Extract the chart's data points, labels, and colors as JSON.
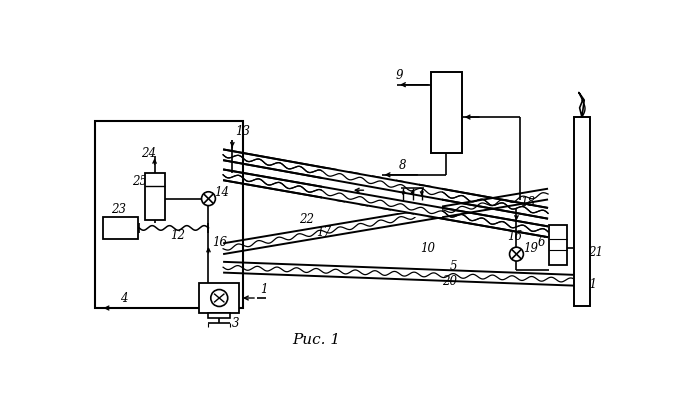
{
  "bg_color": "#ffffff",
  "fig_width": 6.99,
  "fig_height": 3.98,
  "dpi": 100
}
